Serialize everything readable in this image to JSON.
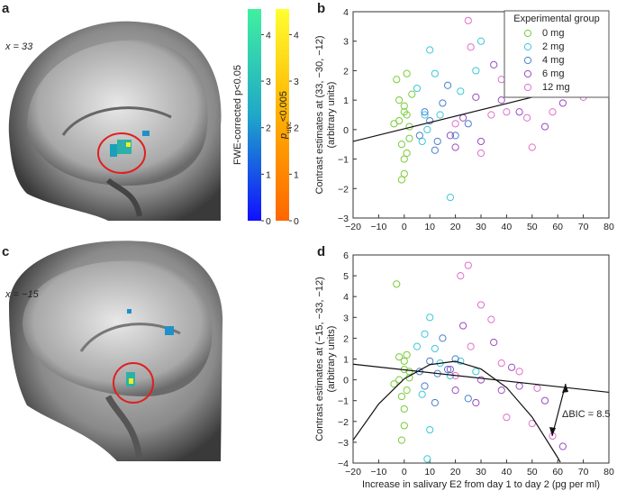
{
  "panels": [
    "a",
    "b",
    "c",
    "d"
  ],
  "brains": [
    {
      "label": "x = 33"
    },
    {
      "label": "x = −15"
    }
  ],
  "colorbars": [
    {
      "label": "FWE-corrected p<0.05",
      "lim": [
        0,
        4.55
      ],
      "ticks": [
        0,
        1,
        2,
        3,
        4
      ],
      "colors": [
        "#1010ff",
        "#20a8c8",
        "#40f0a0"
      ]
    },
    {
      "label": {
        "symbol": "p",
        "subscript": "unc",
        "text": "<0.005"
      },
      "lim": [
        0,
        4.55
      ],
      "ticks": [
        0,
        1,
        2,
        3,
        4
      ],
      "colors": [
        "#ff6600",
        "#ffb000",
        "#ffff30"
      ]
    }
  ],
  "chart_data": [
    {
      "type": "scatter",
      "ylabel": [
        "Contrast estimates at (33, −30, −12)",
        "(arbitrary units)"
      ],
      "legend_title": "Experimental group",
      "legend": "upper right",
      "xlim": [
        -20,
        80
      ],
      "xticks": [
        {
          "value": -20,
          "label": "−20"
        },
        {
          "value": -10,
          "label": "−10"
        },
        0,
        10,
        20,
        30,
        40,
        50,
        60,
        70,
        80
      ],
      "ylim": [
        -3,
        4
      ],
      "yticks": [
        {
          "value": -3,
          "label": "−3"
        },
        {
          "value": -2,
          "label": "−2"
        },
        {
          "value": -1,
          "label": "−1"
        },
        0,
        1,
        2,
        3,
        4
      ],
      "series": [
        {
          "name": "0 mg",
          "color": "#7acc3a",
          "x": [
            -3,
            -2,
            -1,
            0,
            0,
            1,
            1,
            2,
            -4,
            0,
            -1,
            2,
            0,
            1,
            -2,
            3
          ],
          "values": [
            1.7,
            0.3,
            -0.5,
            0.8,
            -1.0,
            1.9,
            0.5,
            -0.3,
            0.2,
            -1.5,
            -1.7,
            0.1,
            0.6,
            -0.8,
            1.0,
            1.2
          ]
        },
        {
          "name": "2 mg",
          "color": "#3cc8d8",
          "x": [
            5,
            8,
            10,
            12,
            18,
            30,
            9,
            14,
            22,
            7,
            28
          ],
          "values": [
            1.4,
            0.5,
            2.7,
            1.9,
            -2.3,
            3.0,
            0.0,
            0.5,
            1.3,
            -0.4,
            2.0
          ]
        },
        {
          "name": "4 mg",
          "color": "#4a80d0",
          "x": [
            6,
            10,
            12,
            15,
            20,
            8,
            17,
            25,
            13
          ],
          "values": [
            -0.2,
            0.3,
            -0.7,
            0.9,
            -0.2,
            0.6,
            1.5,
            0.2,
            -0.4
          ]
        },
        {
          "name": "6 mg",
          "color": "#9a4cc0",
          "x": [
            18,
            20,
            23,
            28,
            35,
            42,
            45,
            55,
            62,
            30,
            38
          ],
          "values": [
            -0.2,
            -0.6,
            0.4,
            1.1,
            2.2,
            2.3,
            0.6,
            0.1,
            0.9,
            -0.4,
            1.0
          ]
        },
        {
          "name": "12 mg",
          "color": "#e070c8",
          "x": [
            25,
            26,
            34,
            38,
            40,
            45,
            50,
            52,
            58,
            70,
            48,
            30,
            20
          ],
          "values": [
            3.7,
            2.8,
            0.5,
            1.7,
            0.6,
            1.2,
            -0.6,
            1.5,
            0.6,
            1.1,
            0.4,
            -0.8,
            0.2
          ]
        }
      ],
      "fits": [
        {
          "x": [
            -20,
            80
          ],
          "values": [
            -0.4,
            1.74
          ]
        }
      ]
    },
    {
      "type": "scatter",
      "ylabel": [
        "Contrast estimates at (−15, −33, −12)",
        "(arbitrary units)"
      ],
      "xlabel": "Increase in salivary E2 from day 1 to day 2 (pg per ml)",
      "xlim": [
        -20,
        80
      ],
      "xticks": [
        {
          "value": -20,
          "label": "−20"
        },
        {
          "value": -10,
          "label": "−10"
        },
        0,
        10,
        20,
        30,
        40,
        50,
        60,
        70,
        80
      ],
      "ylim": [
        -4,
        6
      ],
      "yticks": [
        {
          "value": -4,
          "label": "−4"
        },
        {
          "value": -3,
          "label": "−3"
        },
        {
          "value": -2,
          "label": "−2"
        },
        {
          "value": -1,
          "label": "−1"
        },
        0,
        1,
        2,
        3,
        4,
        5,
        6
      ],
      "series": [
        {
          "name": "0 mg",
          "color": "#7acc3a",
          "x": [
            -3,
            -2,
            -1,
            0,
            0,
            1,
            1,
            2,
            -4,
            0,
            -1,
            2,
            0,
            -2
          ],
          "values": [
            4.6,
            1.1,
            -0.8,
            0.5,
            -1.4,
            -0.5,
            1.2,
            0.1,
            -0.2,
            -2.2,
            -2.9,
            0.4,
            0.9,
            0.0
          ]
        },
        {
          "name": "2 mg",
          "color": "#3cc8d8",
          "x": [
            5,
            8,
            10,
            12,
            18,
            9,
            14,
            22,
            7,
            28,
            10
          ],
          "values": [
            1.6,
            2.2,
            3.0,
            1.5,
            0.2,
            -3.8,
            0.8,
            0.9,
            -0.7,
            0.4,
            -2.4
          ]
        },
        {
          "name": "4 mg",
          "color": "#4a80d0",
          "x": [
            6,
            10,
            12,
            15,
            20,
            8,
            17,
            25,
            13
          ],
          "values": [
            0.4,
            0.9,
            -1.1,
            2.0,
            1.0,
            -0.3,
            0.5,
            -0.9,
            0.3
          ]
        },
        {
          "name": "6 mg",
          "color": "#9a4cc0",
          "x": [
            18,
            20,
            23,
            28,
            35,
            42,
            45,
            55,
            62,
            30,
            38
          ],
          "values": [
            0.5,
            -0.5,
            2.6,
            -1.1,
            1.8,
            0.6,
            -0.3,
            -1.0,
            -3.2,
            0.0,
            -0.5
          ]
        },
        {
          "name": "12 mg",
          "color": "#e070c8",
          "x": [
            22,
            25,
            26,
            34,
            38,
            40,
            45,
            50,
            52,
            58,
            20,
            30
          ],
          "values": [
            5.0,
            5.5,
            1.6,
            2.9,
            0.8,
            -1.8,
            0.4,
            -2.1,
            -0.4,
            -2.7,
            0.2,
            3.6
          ]
        }
      ],
      "fits": [
        {
          "x": [
            -20,
            80
          ],
          "values": [
            0.75,
            -0.6
          ]
        },
        {
          "x": [
            -20,
            -10,
            0,
            10,
            20,
            30,
            40,
            50,
            60,
            61
          ],
          "values": [
            -2.9,
            -1.16,
            0.05,
            0.73,
            0.89,
            0.52,
            -0.37,
            -1.79,
            -3.74,
            -3.96
          ]
        }
      ],
      "annotations": [
        {
          "text": "ΔBIC = 8.5"
        }
      ]
    }
  ]
}
